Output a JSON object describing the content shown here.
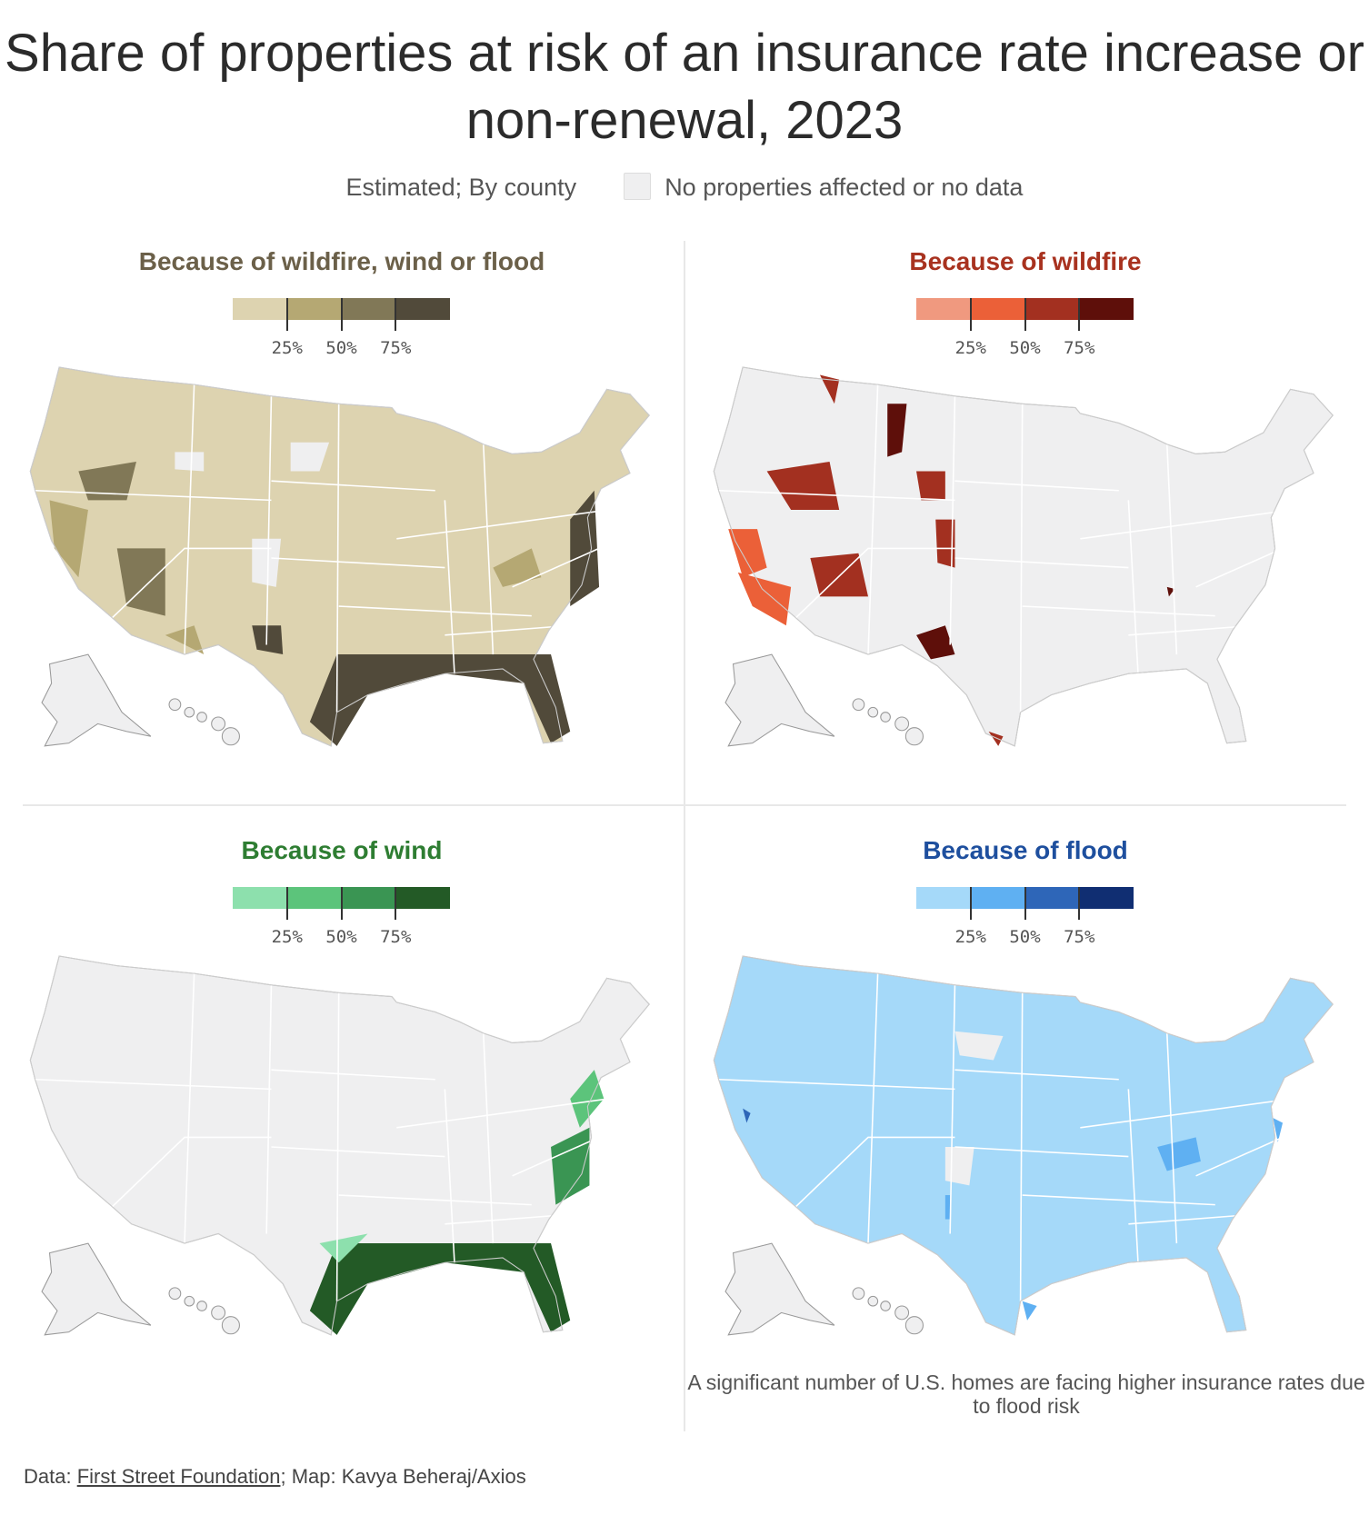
{
  "chart_data": {
    "type": "choropleth-map",
    "title": "Share of properties at risk of an insurance rate increase or non-renewal, 2023",
    "subtitle": "Estimated; By county",
    "nodata_label": "No properties affected or no data",
    "nodata_color": "#efeff0",
    "legend_ticks": [
      "25%",
      "50%",
      "75%"
    ],
    "panels": [
      {
        "title": "Because of wildfire, wind or flood",
        "title_color": "#6b6049",
        "ramp": [
          "#ddd3b0",
          "#b5a873",
          "#817857",
          "#514a3a"
        ]
      },
      {
        "title": "Because of wildfire",
        "title_color": "#a8321f",
        "ramp": [
          "#f0997f",
          "#eb6038",
          "#a33020",
          "#5e0f0a"
        ]
      },
      {
        "title": "Because of wind",
        "title_color": "#2e7d32",
        "ramp": [
          "#8de0ad",
          "#5cc47b",
          "#3a9553",
          "#235a26"
        ]
      },
      {
        "title": "Because of flood",
        "title_color": "#1e4f9e",
        "ramp": [
          "#a5d9f9",
          "#5fb0f2",
          "#2e66b8",
          "#102e72"
        ]
      }
    ],
    "annotation": "A significant number of U.S. homes are facing higher insurance rates due to flood risk"
  },
  "footer": {
    "prefix": "Data: ",
    "source": "First Street Foundation",
    "suffix": "; Map: Kavya Beheraj/Axios"
  }
}
